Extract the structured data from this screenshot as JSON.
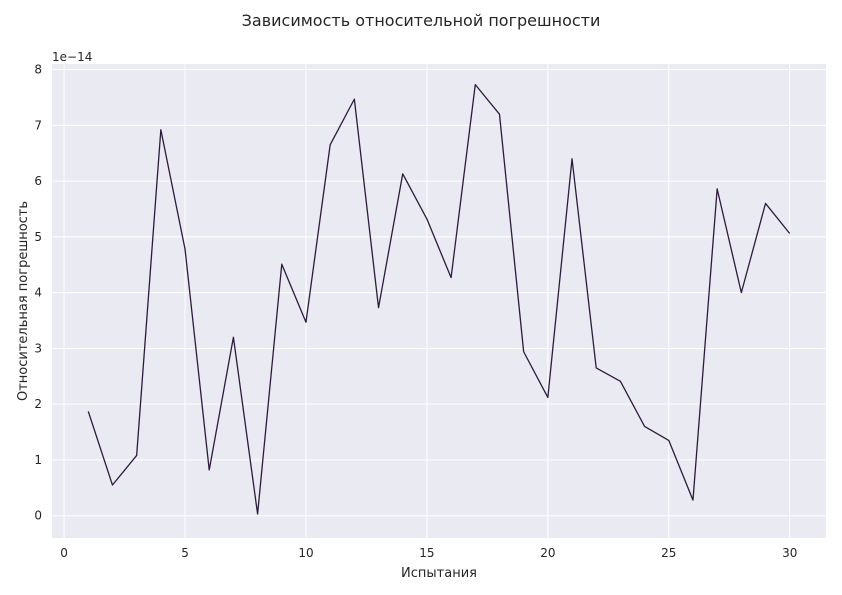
{
  "chart_data": {
    "type": "line",
    "title": "Зависимость относительной погрешности",
    "xlabel": "Испытания",
    "ylabel": "Относительная погрешность",
    "y_offset_label": "1e−14",
    "xlim": [
      -0.5,
      31.5
    ],
    "ylim": [
      -0.4,
      8.1
    ],
    "xticks": [
      0,
      5,
      10,
      15,
      20,
      25,
      30
    ],
    "yticks": [
      0,
      1,
      2,
      3,
      4,
      5,
      6,
      7,
      8
    ],
    "grid": true,
    "series": [
      {
        "color": "#2d1a3c",
        "x": [
          1,
          2,
          3,
          4,
          5,
          6,
          7,
          8,
          9,
          10,
          11,
          12,
          13,
          14,
          15,
          16,
          17,
          18,
          19,
          20,
          21,
          22,
          23,
          24,
          25,
          26,
          27,
          28,
          29,
          30
        ],
        "y": [
          1.87,
          0.55,
          1.08,
          6.92,
          4.78,
          0.82,
          3.2,
          0.03,
          4.51,
          3.47,
          6.65,
          7.47,
          3.73,
          6.13,
          5.32,
          4.27,
          7.73,
          7.2,
          2.94,
          2.12,
          6.4,
          2.65,
          2.41,
          1.6,
          1.35,
          0.28,
          5.86,
          4.0,
          5.6,
          5.06
        ]
      }
    ]
  }
}
